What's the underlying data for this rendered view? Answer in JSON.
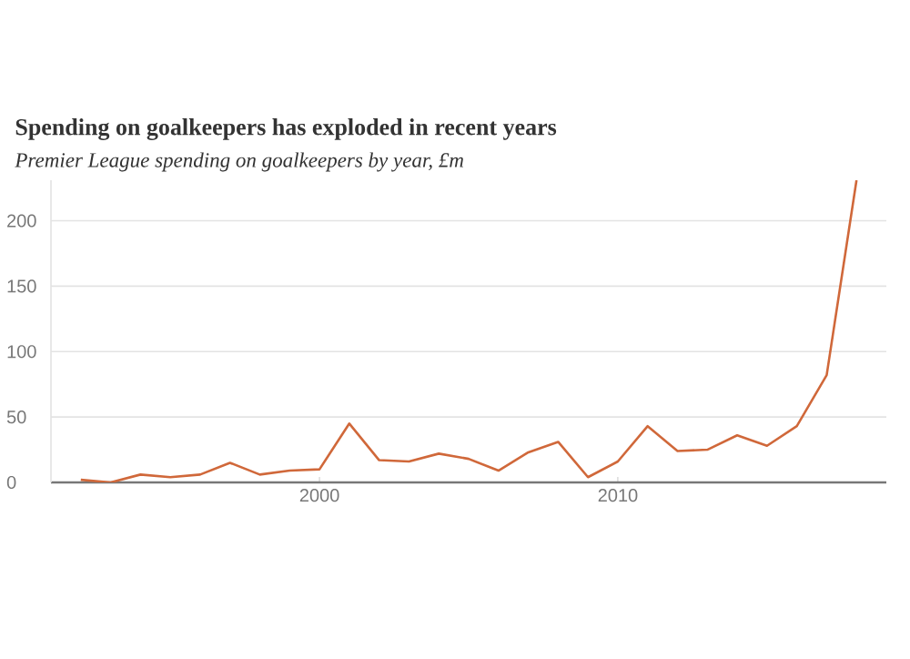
{
  "chart_data": {
    "type": "line",
    "title": "Spending on goalkeepers has exploded in recent years",
    "subtitle": "Premier League spending on goalkeepers by year, £m",
    "x": [
      1992,
      1993,
      1994,
      1995,
      1996,
      1997,
      1998,
      1999,
      2000,
      2001,
      2002,
      2003,
      2004,
      2005,
      2006,
      2007,
      2008,
      2009,
      2010,
      2011,
      2012,
      2013,
      2014,
      2015,
      2016,
      2017,
      2018
    ],
    "series": [
      {
        "color": "#d0683a",
        "values": [
          2,
          0,
          6,
          4,
          6,
          15,
          6,
          9,
          10,
          45,
          17,
          16,
          22,
          18,
          9,
          23,
          31,
          4,
          16,
          43,
          24,
          25,
          36,
          28,
          43,
          82,
          231
        ]
      }
    ],
    "xlim": [
      1991,
      2019
    ],
    "xticks": [
      2000,
      2010
    ],
    "ylim": [
      0,
      231
    ],
    "yticks": [
      0,
      50,
      100,
      150,
      200
    ],
    "grid": "y",
    "marker": "none",
    "line_style": "solid"
  }
}
